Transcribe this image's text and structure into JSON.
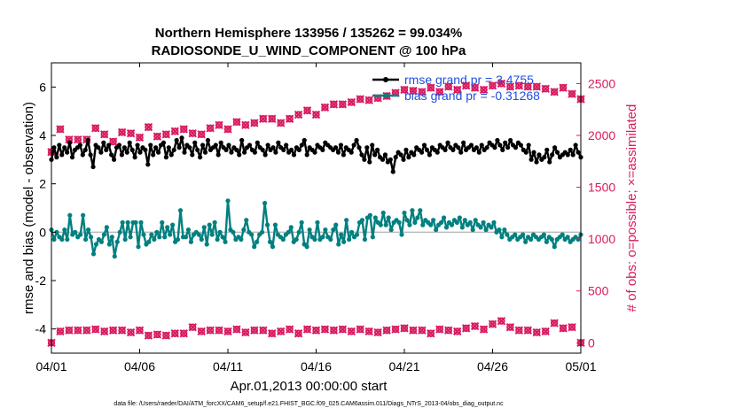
{
  "chart_data": {
    "type": "line",
    "title_line1": "Northern Hemisphere 133956 / 135262 = 99.034%",
    "title_line2": "RADIOSONDE_U_WIND_COMPONENT @ 100 hPa",
    "xlabel": "Apr.01,2013 00:00:00 start",
    "ylabel_left": "rmse and bias (model - observation)",
    "ylabel_right": "# of obs: o=possible; ×=assimilated",
    "footer": "data file: /Users/raeder/DAI/ATM_forcXX/CAM6_setup/f.e21.FHIST_BGC.f09_025.CAM6assim.011/Diags_NTrS_2013-04/obs_diag_output.nc",
    "xlim": [
      0,
      30
    ],
    "ylim_left": [
      -5,
      7
    ],
    "ylim_right": [
      -100,
      2700
    ],
    "x_ticks": [
      0,
      5,
      10,
      15,
      20,
      25,
      30
    ],
    "x_tick_labels": [
      "04/01",
      "04/06",
      "04/11",
      "04/16",
      "04/21",
      "04/26",
      "05/01"
    ],
    "y_ticks_left": [
      -4,
      -2,
      0,
      2,
      4,
      6
    ],
    "y_ticks_right": [
      0,
      500,
      1000,
      1500,
      2000,
      2500
    ],
    "colors": {
      "rmse": "#000000",
      "bias": "#008080",
      "obs": "#d81b60",
      "zero_line": "#bbbbbb",
      "legend_text": "#1f4fe0"
    },
    "series": [
      {
        "name": "rmse grand pr = 3.4755",
        "axis": "left",
        "values": [
          3.0,
          3.5,
          3.1,
          3.6,
          3.2,
          3.5,
          3.3,
          3.7,
          3.1,
          3.4,
          3.5,
          3.6,
          3.2,
          3.4,
          3.8,
          3.2,
          2.7,
          3.6,
          3.5,
          3.3,
          3.7,
          3.4,
          3.6,
          3.2,
          3.0,
          3.5,
          3.6,
          3.2,
          3.5,
          3.3,
          3.7,
          3.4,
          3.1,
          3.6,
          3.3,
          3.5,
          3.4,
          2.8,
          3.6,
          3.2,
          3.5,
          3.3,
          3.6,
          3.7,
          3.1,
          3.5,
          3.2,
          3.4,
          3.8,
          3.5,
          3.9,
          3.3,
          3.6,
          3.5,
          3.2,
          3.7,
          3.4,
          3.1,
          3.6,
          3.3,
          3.8,
          3.4,
          3.5,
          3.6,
          3.2,
          3.7,
          3.5,
          3.4,
          3.6,
          3.3,
          3.5,
          3.4,
          3.2,
          3.8,
          3.3,
          3.5,
          3.6,
          3.4,
          3.3,
          3.7,
          3.5,
          3.4,
          3.2,
          3.6,
          3.4,
          3.5,
          3.3,
          3.7,
          3.5,
          3.4,
          3.6,
          3.3,
          3.4,
          3.2,
          3.5,
          3.4,
          3.6,
          3.8,
          3.2,
          3.5,
          3.4,
          3.3,
          3.6,
          3.5,
          3.4,
          3.7,
          3.6,
          3.5,
          3.4,
          3.5,
          3.3,
          3.6,
          3.2,
          3.5,
          3.4,
          3.3,
          3.6,
          3.8,
          3.5,
          3.2,
          3.0,
          3.5,
          2.9,
          3.6,
          3.2,
          3.4,
          3.1,
          3.0,
          3.2,
          2.9,
          3.0,
          2.5,
          3.1,
          3.3,
          3.2,
          3.0,
          3.4,
          3.1,
          3.3,
          3.2,
          3.5,
          3.4,
          3.3,
          3.6,
          3.4,
          3.2,
          3.5,
          3.4,
          3.3,
          3.6,
          3.5,
          3.4,
          3.7,
          3.5,
          3.4,
          3.6,
          3.5,
          3.3,
          3.7,
          3.4,
          3.5,
          3.6,
          3.4,
          3.5,
          3.3,
          3.6,
          3.4,
          3.5,
          3.7,
          3.6,
          3.5,
          3.8,
          3.6,
          3.4,
          3.7,
          3.5,
          3.8,
          3.6,
          3.5,
          3.7,
          3.6,
          3.4,
          3.3,
          3.6,
          3.0,
          3.3,
          2.9,
          3.2,
          3.0,
          3.1,
          3.4,
          2.9,
          3.2,
          3.5,
          3.3,
          3.1,
          3.2,
          3.3,
          3.2,
          3.4,
          3.2,
          3.6,
          3.3,
          3.1
        ]
      },
      {
        "name": "bias grand pr = -0.31268",
        "axis": "left",
        "values": [
          0.1,
          -0.3,
          0.0,
          -0.2,
          -0.3,
          0.1,
          -0.3,
          0.7,
          -0.1,
          0.0,
          -0.2,
          -0.1,
          0.7,
          -0.3,
          0.1,
          -0.2,
          -0.9,
          -0.5,
          -0.3,
          -0.4,
          -0.1,
          0.2,
          -0.5,
          -0.2,
          -1.0,
          -0.4,
          0.0,
          0.4,
          -0.3,
          0.4,
          -0.2,
          0.4,
          0.4,
          -0.6,
          0.4,
          -0.1,
          -0.5,
          -0.4,
          -0.1,
          -0.3,
          0.0,
          -0.2,
          0.4,
          -0.2,
          0.2,
          -0.1,
          0.3,
          -0.4,
          -0.3,
          0.9,
          -0.2,
          -0.2,
          0.1,
          -0.4,
          -0.1,
          0.0,
          -0.1,
          -0.3,
          0.2,
          -0.5,
          0.3,
          -0.1,
          0.4,
          -0.3,
          0.0,
          -0.2,
          -0.4,
          1.3,
          0.1,
          0.0,
          -0.3,
          -0.2,
          -0.3,
          0.1,
          0.5,
          0.0,
          -0.1,
          -0.6,
          -0.4,
          -0.1,
          0.0,
          1.2,
          0.3,
          -0.4,
          -0.6,
          0.3,
          -0.1,
          -0.2,
          -0.3,
          -0.1,
          0.0,
          0.2,
          -0.4,
          -0.3,
          0.0,
          0.4,
          -0.5,
          -0.6,
          0.1,
          -0.2,
          -0.3,
          0.4,
          -0.3,
          -0.2,
          0.1,
          -0.2,
          -0.3,
          0.1,
          0.3,
          -0.5,
          -0.1,
          -0.4,
          0.5,
          -0.3,
          0.0,
          -0.2,
          -0.1,
          0.4,
          0.5,
          -0.3,
          0.6,
          0.7,
          -0.2,
          0.6,
          0.4,
          0.3,
          0.8,
          0.3,
          0.6,
          0.1,
          0.4,
          0.5,
          0.4,
          -0.1,
          0.8,
          0.5,
          0.3,
          0.9,
          0.4,
          0.6,
          0.9,
          0.3,
          0.5,
          0.4,
          0.3,
          0.5,
          0.1,
          0.3,
          0.4,
          0.6,
          0.2,
          0.4,
          0.3,
          0.5,
          0.4,
          0.6,
          0.2,
          0.5,
          0.3,
          0.4,
          0.1,
          0.5,
          0.3,
          0.2,
          0.4,
          0.1,
          0.3,
          0.2,
          0.4,
          0.0,
          0.1,
          -0.2,
          0.1,
          -0.1,
          -0.3,
          -0.2,
          -0.1,
          -0.3,
          -0.2,
          -0.1,
          -0.4,
          -0.2,
          -0.3,
          -0.1,
          -0.2,
          -0.3,
          -0.2,
          -0.1,
          -0.4,
          -0.2,
          -0.3,
          -0.6,
          -0.3,
          -0.2,
          -0.1,
          -0.3,
          -0.2,
          -0.4,
          -0.3,
          -0.2,
          -0.3,
          -0.1
        ]
      },
      {
        "name": "obs possible (o)",
        "axis": "right",
        "values": [
          1840,
          2060,
          1960,
          1960,
          1960,
          2070,
          2010,
          1940,
          2030,
          2020,
          1980,
          2080,
          1990,
          2010,
          2040,
          2060,
          2020,
          2010,
          2070,
          2100,
          2060,
          2130,
          2100,
          2120,
          2160,
          2160,
          2120,
          2160,
          2200,
          2240,
          2200,
          2270,
          2300,
          2300,
          2320,
          2350,
          2340,
          2360,
          2380,
          2410,
          2440,
          2430,
          2420,
          2460,
          2420,
          2470,
          2440,
          2480,
          2460,
          2440,
          2480,
          2500,
          2470,
          2480,
          2470,
          2470,
          2450,
          2420,
          2460,
          2400,
          2350
        ]
      },
      {
        "name": "obs assimilated (×)",
        "axis": "right",
        "values": [
          0,
          110,
          120,
          120,
          120,
          130,
          110,
          120,
          120,
          100,
          120,
          70,
          80,
          70,
          90,
          90,
          150,
          110,
          120,
          120,
          110,
          130,
          100,
          120,
          120,
          90,
          110,
          130,
          90,
          130,
          120,
          130,
          120,
          130,
          110,
          130,
          110,
          100,
          120,
          130,
          140,
          120,
          120,
          90,
          130,
          120,
          110,
          140,
          160,
          130,
          180,
          210,
          150,
          120,
          120,
          100,
          110,
          190,
          140,
          150,
          0
        ]
      }
    ],
    "legend": [
      "rmse grand pr = 3.4755",
      "bias grand pr = -0.31268"
    ],
    "legend_position": "top-right"
  }
}
